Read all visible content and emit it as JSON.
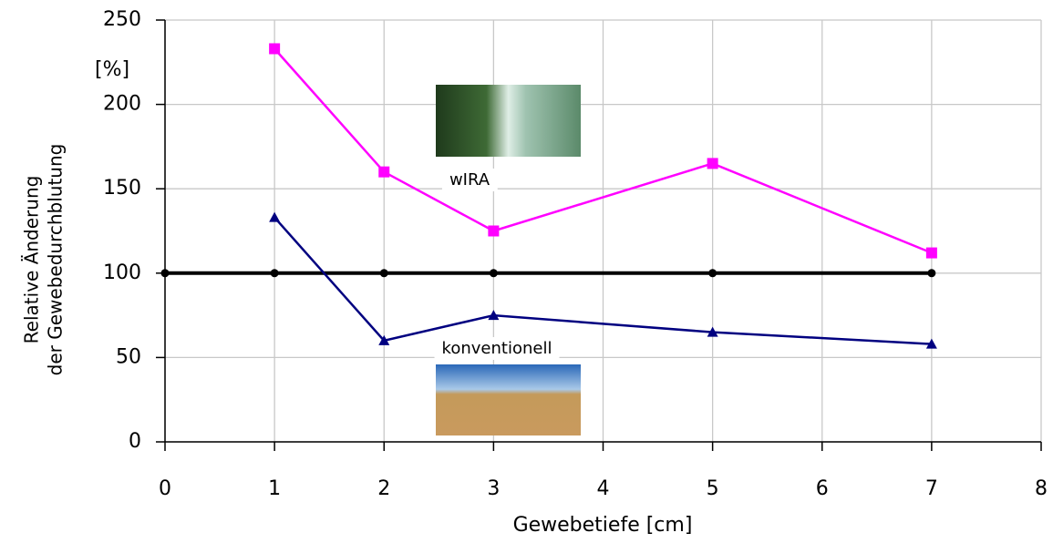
{
  "chart_data": {
    "type": "line",
    "xlabel": "Gewebetiefe [cm]",
    "ylabel_lines": [
      "Relative Änderung",
      "der Gewebedurchblutung"
    ],
    "unit_label": "[%]",
    "xlim": [
      0,
      8
    ],
    "xticks": [
      0,
      1,
      2,
      3,
      4,
      5,
      6,
      7,
      8
    ],
    "ylim": [
      0,
      250
    ],
    "yticks": [
      0,
      50,
      100,
      150,
      200,
      250
    ],
    "grid": true,
    "series": [
      {
        "name": "wIRA",
        "color": "#ff00ff",
        "marker": "square",
        "x": [
          1,
          2,
          3,
          5,
          7
        ],
        "values": [
          233,
          160,
          125,
          165,
          112
        ]
      },
      {
        "name": "konventionell",
        "color": "#000080",
        "marker": "triangle",
        "x": [
          1,
          2,
          3,
          5,
          7
        ],
        "values": [
          133,
          60,
          75,
          65,
          58
        ]
      },
      {
        "color": "#000000",
        "marker": "circle",
        "x": [
          0,
          1,
          2,
          3,
          5,
          7
        ],
        "values": [
          100,
          100,
          100,
          100,
          100,
          100
        ]
      }
    ]
  }
}
